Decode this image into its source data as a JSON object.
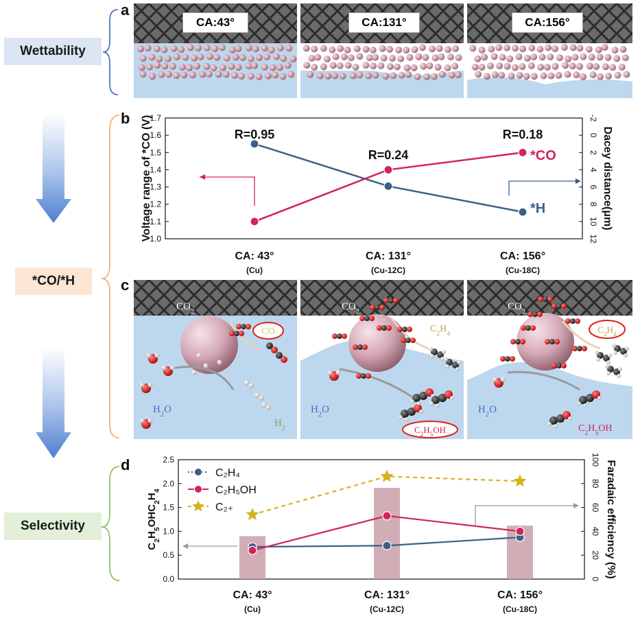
{
  "side_labels": {
    "wettability": "Wettability",
    "co_h": "*CO/*H",
    "selectivity": "Selectivity"
  },
  "colors": {
    "wettability_bg": "#dbe5f4",
    "coh_bg": "#fde5d3",
    "selectivity_bg": "#e2efd9",
    "blue_series": "#3b5f8a",
    "red_series": "#d2245a",
    "gold_series": "#d6b21d",
    "bar_color": "#c9a0a8",
    "water": "#bdd7ee"
  },
  "panel_a": {
    "letter": "a",
    "boxes": [
      "CA:43°",
      "CA:131°",
      "CA:156°"
    ]
  },
  "panel_b": {
    "letter": "b",
    "annotations": {
      "r1": "R=0.95",
      "r2": "R=0.24",
      "r3": "R=0.18",
      "co_label": "*CO",
      "h_label": "*H"
    }
  },
  "panel_c": {
    "letter": "c",
    "p1": {
      "co2": "CO2",
      "co": "CO",
      "h2o": "H2O",
      "h2": "H2"
    },
    "p2": {
      "co2": "CO2",
      "c2h4": "C2H4",
      "h2o": "H2O",
      "c2h5oh": "C2H5OH"
    },
    "p3": {
      "co2": "CO2",
      "c2h4": "C2H4",
      "h2o": "H2O",
      "c2h5oh": "C2H5OH"
    }
  },
  "panel_d": {
    "letter": "d"
  },
  "chart_data": [
    {
      "type": "line",
      "panel": "b",
      "categories": [
        "CA: 43°",
        "CA: 131°",
        "CA: 156°"
      ],
      "category_sublabels": [
        "(Cu)",
        "(Cu-12C)",
        "(Cu-18C)"
      ],
      "ylabel": "Voltage range of *CO (V)",
      "ylim": [
        1.0,
        1.7
      ],
      "yticks": [
        "1.0",
        "1.1",
        "1.2",
        "1.3",
        "1.4",
        "1.5",
        "1.6",
        "1.7"
      ],
      "y2label": "Dacey distance(μm)",
      "y2lim": [
        12,
        -2
      ],
      "y2ticks": [
        "-2",
        "0",
        "2",
        "4",
        "6",
        "8",
        "10",
        "12"
      ],
      "series": [
        {
          "name": "*CO",
          "axis": "left",
          "color": "#d2245a",
          "values": [
            1.1,
            1.4,
            1.5
          ]
        },
        {
          "name": "*H",
          "axis": "right",
          "color": "#3b5f8a",
          "values": [
            1.0,
            5.9,
            8.9
          ]
        }
      ]
    },
    {
      "type": "bar",
      "panel": "d",
      "categories": [
        "CA: 43°",
        "CA: 131°",
        "CA: 156°"
      ],
      "category_sublabels": [
        "(Cu)",
        "(Cu-12C)",
        "(Cu-18C)"
      ],
      "ylabel": "C2H5OH/C2H4",
      "ylim": [
        0,
        2.5
      ],
      "yticks": [
        "0.0",
        "0.5",
        "1.0",
        "1.5",
        "2.0",
        "2.5"
      ],
      "y2label": "Faradaic efficiency (%)",
      "y2lim": [
        0,
        100
      ],
      "y2ticks": [
        "0",
        "20",
        "40",
        "60",
        "80",
        "100"
      ],
      "bars": [
        0.9,
        1.91,
        1.12
      ],
      "legend": [
        "C₂H₄",
        "C₂H₅OH",
        "C₂₊"
      ],
      "series": [
        {
          "name": "C₂H₄",
          "axis": "right",
          "color": "#3b5f8a",
          "values": [
            27,
            28,
            35
          ]
        },
        {
          "name": "C₂H₅OH",
          "axis": "right",
          "color": "#d2245a",
          "values": [
            24,
            53,
            40
          ]
        },
        {
          "name": "C₂₊",
          "axis": "right",
          "color": "#d6b21d",
          "values": [
            54,
            86,
            82
          ]
        }
      ]
    }
  ]
}
